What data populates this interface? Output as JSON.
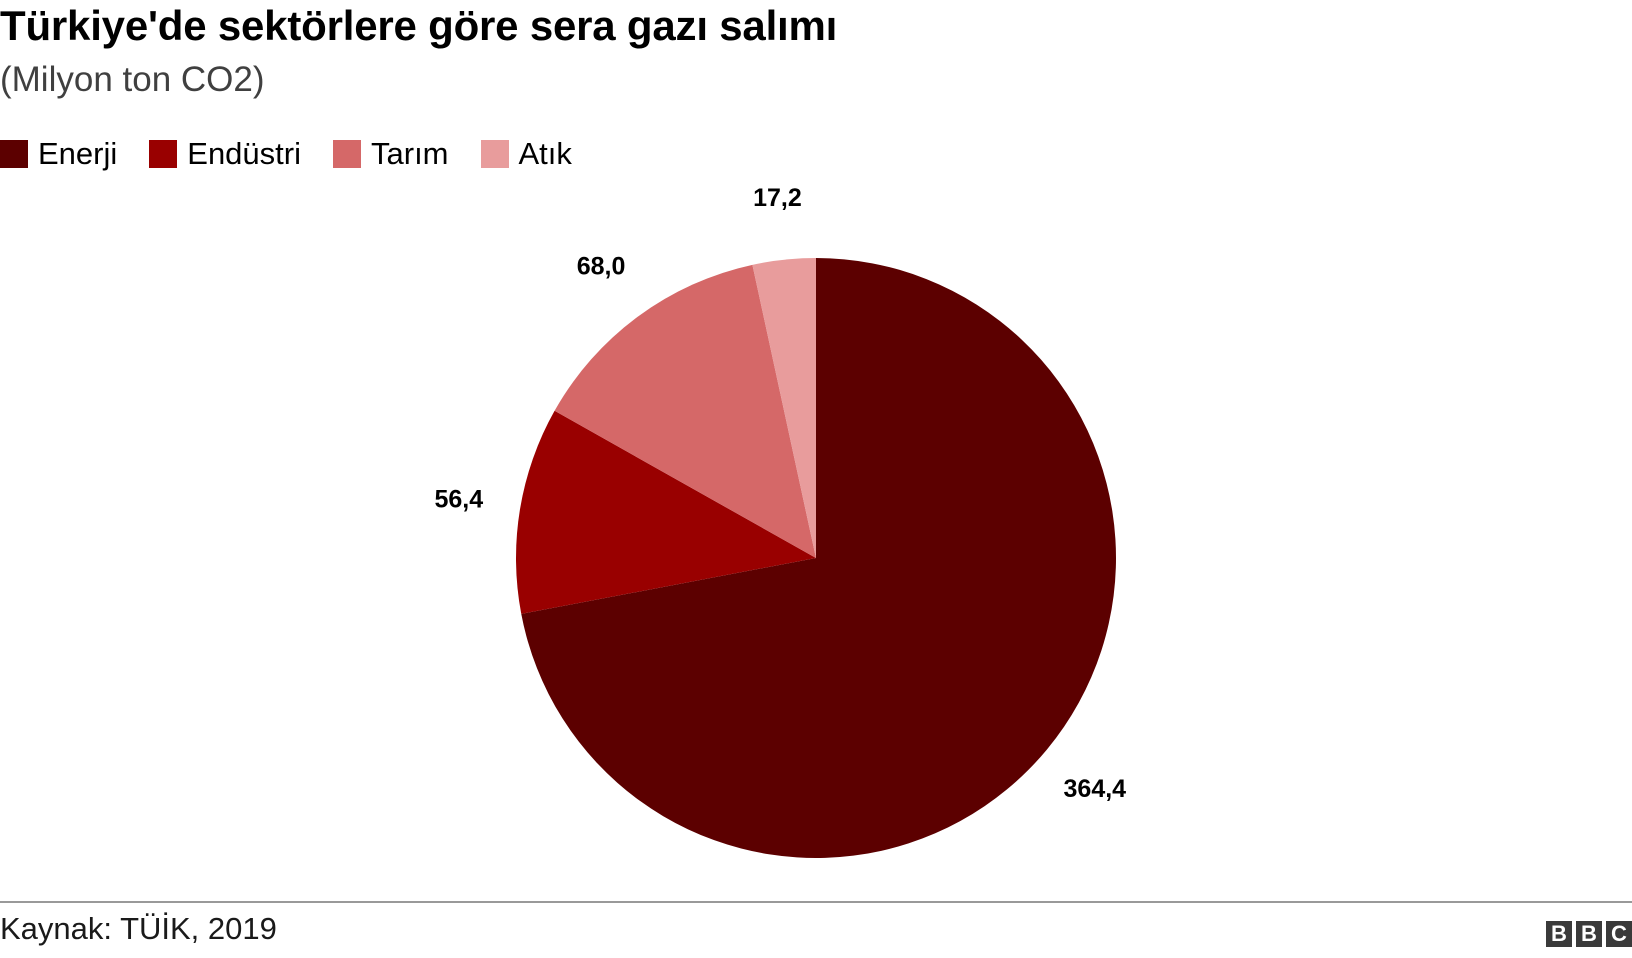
{
  "header": {
    "title": "Türkiye'de sektörlere göre sera gazı salımı",
    "subtitle": "(Milyon ton CO2)"
  },
  "footer": {
    "source": "Kaynak: TÜİK, 2019",
    "logo": [
      "B",
      "B",
      "C"
    ]
  },
  "chart_data": {
    "type": "pie",
    "title": "Türkiye'de sektörlere göre sera gazı salımı",
    "subtitle": "(Milyon ton CO2)",
    "unit": "Milyon ton CO2",
    "legend_position": "top-left",
    "start_angle": "12 o'clock, clockwise",
    "slices": [
      {
        "label": "Enerji",
        "value": 364.4,
        "display": "364,4",
        "color": "#5c0000"
      },
      {
        "label": "Endüstri",
        "value": 56.4,
        "display": "56,4",
        "color": "#990000"
      },
      {
        "label": "Tarım",
        "value": 68.0,
        "display": "68,0",
        "color": "#d56868"
      },
      {
        "label": "Atık",
        "value": 17.2,
        "display": "17,2",
        "color": "#e89c9c"
      }
    ]
  }
}
